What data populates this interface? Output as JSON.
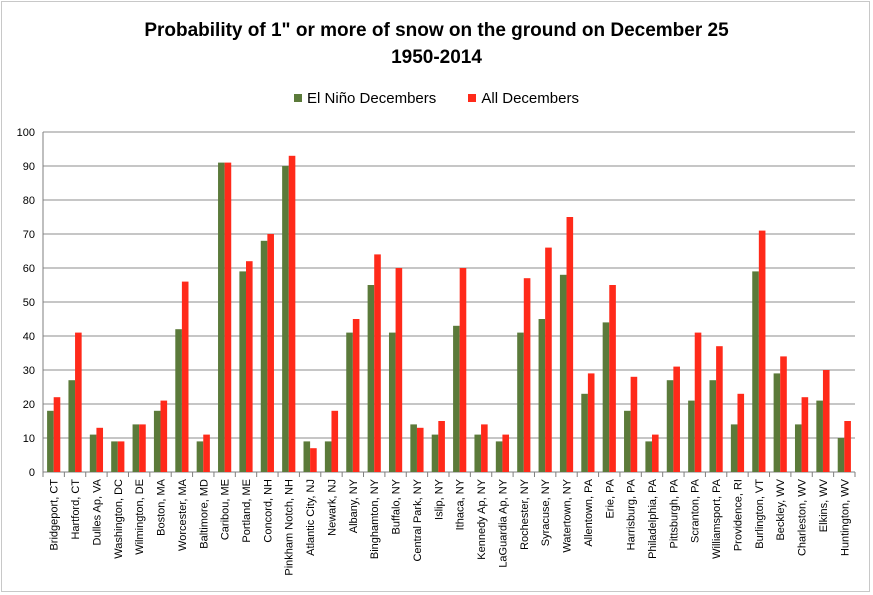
{
  "colors": {
    "el_nino": "#5b7a3a",
    "all": "#ff2a1a",
    "grid": "#8c8c8c",
    "axis": "#7f7f7f"
  },
  "chart_data": {
    "type": "bar",
    "title": "Probability of 1\" or more of snow on the ground on December 25",
    "subtitle": "1950-2014",
    "xlabel": "",
    "ylabel": "",
    "ylim": [
      0,
      100
    ],
    "yticks": [
      0,
      10,
      20,
      30,
      40,
      50,
      60,
      70,
      80,
      90,
      100
    ],
    "grid": true,
    "legend_position": "top",
    "categories": [
      "Bridgeport, CT",
      "Hartford, CT",
      "Dulles Ap, VA",
      "Washington, DC",
      "Wilmington, DE",
      "Boston, MA",
      "Worcester, MA",
      "Baltimore, MD",
      "Caribou, ME",
      "Portland, ME",
      "Concord, NH",
      "Pinkham Notch, NH",
      "Atlantic City, NJ",
      "Newark, NJ",
      "Albany, NY",
      "Binghamton, NY",
      "Buffalo, NY",
      "Central Park, NY",
      "Islip, NY",
      "Ithaca, NY",
      "Kennedy Ap, NY",
      "LaGuardia Ap, NY",
      "Rochester, NY",
      "Syracuse, NY",
      "Watertown, NY",
      "Allentown, PA",
      "Erie, PA",
      "Harrisburg, PA",
      "Philadelphia, PA",
      "Pittsburgh, PA",
      "Scranton, PA",
      "Williamsport, PA",
      "Providence, RI",
      "Burlington, VT",
      "Beckley, WV",
      "Charleston, WV",
      "Elkins, WV",
      "Huntington, WV"
    ],
    "series": [
      {
        "name": "El Niño Decembers",
        "values": [
          18,
          27,
          11,
          9,
          14,
          18,
          42,
          9,
          91,
          59,
          68,
          90,
          9,
          9,
          41,
          55,
          41,
          14,
          11,
          43,
          11,
          9,
          41,
          45,
          58,
          23,
          44,
          18,
          9,
          27,
          21,
          27,
          14,
          59,
          29,
          14,
          21,
          10
        ]
      },
      {
        "name": "All Decembers",
        "values": [
          22,
          41,
          13,
          9,
          14,
          21,
          56,
          11,
          91,
          62,
          70,
          93,
          7,
          18,
          45,
          64,
          60,
          13,
          15,
          60,
          14,
          11,
          57,
          66,
          75,
          29,
          55,
          28,
          11,
          31,
          41,
          37,
          23,
          71,
          34,
          22,
          30,
          15
        ]
      }
    ]
  }
}
